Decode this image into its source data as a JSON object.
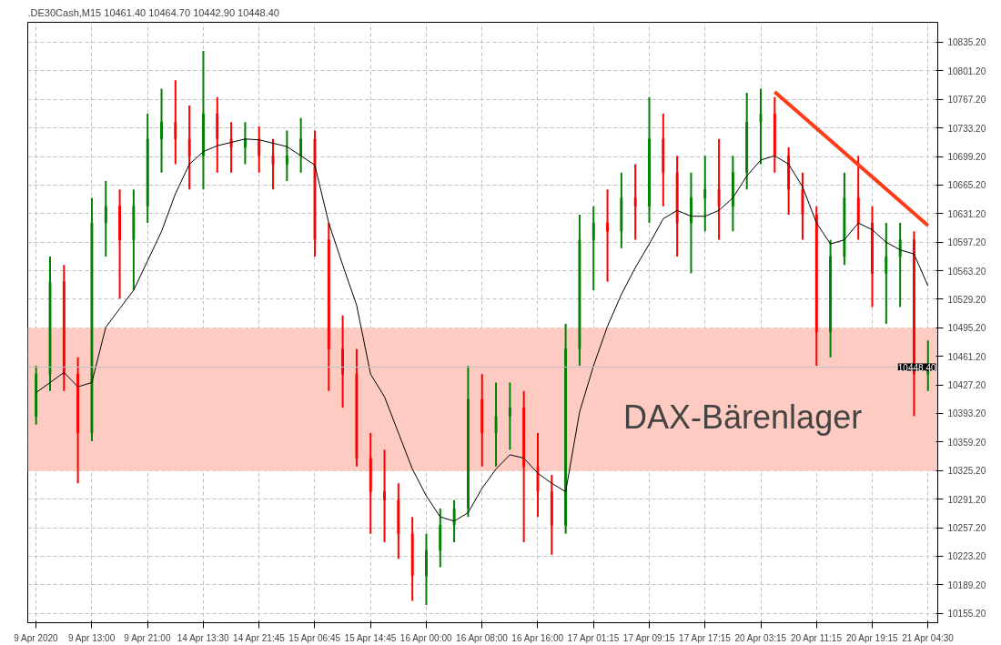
{
  "chart_data": {
    "type": "candlestick",
    "title": ".DE30Cash,M15  10461.40 10464.70 10442.90 10448.40",
    "categories": [
      "9 Apr 2020",
      null,
      null,
      null,
      "9 Apr 13:00",
      null,
      null,
      null,
      "9 Apr 21:00",
      null,
      null,
      null,
      "14 Apr 13:30",
      null,
      null,
      null,
      "14 Apr 21:45",
      null,
      null,
      null,
      "15 Apr 06:45",
      null,
      null,
      null,
      "15 Apr 14:45",
      null,
      null,
      null,
      "16 Apr 00:00",
      null,
      null,
      null,
      "16 Apr 08:00",
      null,
      null,
      null,
      "16 Apr 16:00",
      null,
      null,
      null,
      "17 Apr 01:15",
      null,
      null,
      null,
      "17 Apr 09:15",
      null,
      null,
      null,
      "17 Apr 17:15",
      null,
      null,
      null,
      "20 Apr 03:15",
      null,
      null,
      null,
      "20 Apr 11:15",
      null,
      null,
      null,
      "20 Apr 19:15",
      null,
      null,
      null,
      "21 Apr 04:30"
    ],
    "ohlc": [
      [
        10390,
        10450,
        10380,
        10440
      ],
      [
        10440,
        10580,
        10420,
        10550
      ],
      [
        10550,
        10570,
        10420,
        10440
      ],
      [
        10440,
        10460,
        10310,
        10370
      ],
      [
        10370,
        10650,
        10360,
        10620
      ],
      [
        10620,
        10670,
        10580,
        10640
      ],
      [
        10640,
        10660,
        10530,
        10600
      ],
      [
        10600,
        10660,
        10540,
        10640
      ],
      [
        10640,
        10750,
        10620,
        10720
      ],
      [
        10720,
        10780,
        10680,
        10740
      ],
      [
        10740,
        10790,
        10690,
        10720
      ],
      [
        10720,
        10760,
        10660,
        10700
      ],
      [
        10700,
        10825,
        10660,
        10750
      ],
      [
        10750,
        10770,
        10680,
        10720
      ],
      [
        10720,
        10740,
        10680,
        10710
      ],
      [
        10710,
        10740,
        10690,
        10720
      ],
      [
        10720,
        10735,
        10680,
        10700
      ],
      [
        10700,
        10720,
        10660,
        10690
      ],
      [
        10690,
        10730,
        10670,
        10700
      ],
      [
        10700,
        10745,
        10680,
        10720
      ],
      [
        10720,
        10730,
        10580,
        10600
      ],
      [
        10600,
        10620,
        10420,
        10470
      ],
      [
        10470,
        10510,
        10400,
        10440
      ],
      [
        10440,
        10470,
        10330,
        10340
      ],
      [
        10340,
        10370,
        10250,
        10300
      ],
      [
        10300,
        10350,
        10240,
        10290
      ],
      [
        10290,
        10310,
        10220,
        10250
      ],
      [
        10250,
        10270,
        10170,
        10200
      ],
      [
        10200,
        10250,
        10165,
        10230
      ],
      [
        10230,
        10280,
        10210,
        10260
      ],
      [
        10260,
        10290,
        10240,
        10280
      ],
      [
        10280,
        10450,
        10270,
        10410
      ],
      [
        10410,
        10440,
        10330,
        10370
      ],
      [
        10370,
        10430,
        10330,
        10390
      ],
      [
        10390,
        10430,
        10350,
        10400
      ],
      [
        10400,
        10420,
        10240,
        10330
      ],
      [
        10330,
        10370,
        10270,
        10300
      ],
      [
        10300,
        10320,
        10225,
        10260
      ],
      [
        10260,
        10500,
        10250,
        10470
      ],
      [
        10470,
        10630,
        10450,
        10600
      ],
      [
        10600,
        10640,
        10540,
        10620
      ],
      [
        10620,
        10660,
        10550,
        10610
      ],
      [
        10610,
        10680,
        10590,
        10650
      ],
      [
        10650,
        10690,
        10600,
        10640
      ],
      [
        10640,
        10770,
        10620,
        10720
      ],
      [
        10720,
        10750,
        10640,
        10680
      ],
      [
        10680,
        10700,
        10580,
        10620
      ],
      [
        10620,
        10680,
        10560,
        10650
      ],
      [
        10650,
        10700,
        10610,
        10660
      ],
      [
        10660,
        10720,
        10600,
        10640
      ],
      [
        10640,
        10700,
        10610,
        10680
      ],
      [
        10680,
        10775,
        10660,
        10740
      ],
      [
        10740,
        10780,
        10690,
        10750
      ],
      [
        10750,
        10770,
        10680,
        10700
      ],
      [
        10700,
        10710,
        10630,
        10660
      ],
      [
        10660,
        10680,
        10600,
        10630
      ],
      [
        10630,
        10640,
        10450,
        10490
      ],
      [
        10490,
        10600,
        10460,
        10580
      ],
      [
        10580,
        10680,
        10570,
        10650
      ],
      [
        10650,
        10700,
        10600,
        10620
      ],
      [
        10620,
        10640,
        10520,
        10560
      ],
      [
        10560,
        10620,
        10500,
        10580
      ],
      [
        10580,
        10620,
        10520,
        10600
      ],
      [
        10600,
        10610,
        10390,
        10440
      ],
      [
        10440,
        10480,
        10420,
        10448.4
      ]
    ],
    "colors": [
      "#008000",
      "#008000",
      "#ff0000",
      "#ff0000",
      "#008000",
      "#008000",
      "#ff0000",
      "#008000",
      "#008000",
      "#008000",
      "#ff0000",
      "#ff0000",
      "#008000",
      "#ff0000",
      "#ff0000",
      "#008000",
      "#ff0000",
      "#ff0000",
      "#008000",
      "#008000",
      "#ff0000",
      "#ff0000",
      "#ff0000",
      "#ff0000",
      "#ff0000",
      "#ff0000",
      "#ff0000",
      "#ff0000",
      "#008000",
      "#008000",
      "#008000",
      "#008000",
      "#ff0000",
      "#008000",
      "#008000",
      "#ff0000",
      "#ff0000",
      "#ff0000",
      "#008000",
      "#008000",
      "#008000",
      "#ff0000",
      "#008000",
      "#ff0000",
      "#008000",
      "#ff0000",
      "#ff0000",
      "#008000",
      "#008000",
      "#ff0000",
      "#008000",
      "#008000",
      "#008000",
      "#ff0000",
      "#ff0000",
      "#ff0000",
      "#ff0000",
      "#008000",
      "#008000",
      "#ff0000",
      "#ff0000",
      "#008000",
      "#008000",
      "#ff0000",
      "#008000"
    ],
    "ylim": [
      10144,
      10859
    ],
    "yticks": [
      {
        "value": 10155.2,
        "label": "10155.20"
      },
      {
        "value": 10189.2,
        "label": "10189.20"
      },
      {
        "value": 10223.2,
        "label": "10223.20"
      },
      {
        "value": 10257.2,
        "label": "10257.20"
      },
      {
        "value": 10291.2,
        "label": "10291.20"
      },
      {
        "value": 10325.2,
        "label": "10325.20"
      },
      {
        "value": 10359.2,
        "label": "10359.20"
      },
      {
        "value": 10393.2,
        "label": "10393.20"
      },
      {
        "value": 10427.2,
        "label": "10427.20"
      },
      {
        "value": 10461.2,
        "label": "10461.20"
      },
      {
        "value": 10495.2,
        "label": "10495.20"
      },
      {
        "value": 10529.2,
        "label": "10529.20"
      },
      {
        "value": 10563.2,
        "label": "10563.20"
      },
      {
        "value": 10597.2,
        "label": "10597.20"
      },
      {
        "value": 10631.2,
        "label": "10631.20"
      },
      {
        "value": 10665.2,
        "label": "10665.20"
      },
      {
        "value": 10699.2,
        "label": "10699.20"
      },
      {
        "value": 10733.2,
        "label": "10733.20"
      },
      {
        "value": 10767.2,
        "label": "10767.20"
      },
      {
        "value": 10801.2,
        "label": "10801.20"
      },
      {
        "value": 10835.2,
        "label": "10835.20"
      }
    ],
    "grid": true,
    "bands": [
      {
        "axis": "y",
        "from": 10325,
        "to": 10495,
        "label": "DAX-Bärenlager",
        "color": "#fdcbc2"
      }
    ],
    "ref_lines": [
      {
        "axis": "y",
        "value": 10448.4,
        "label": "10448.40",
        "color": "#c0c0c0"
      }
    ],
    "series": [
      {
        "type": "line",
        "color": "#000000",
        "values": [
          10418,
          10430,
          10442,
          10425,
          10430,
          10496,
          10518,
          10540,
          10575,
          10610,
          10655,
          10690,
          10705,
          10712,
          10716,
          10720,
          10719,
          10715,
          10711,
          10700,
          10689,
          10620,
          10570,
          10522,
          10440,
          10413,
          10370,
          10327,
          10295,
          10270,
          10265,
          10275,
          10304,
          10327,
          10344,
          10340,
          10322,
          10310,
          10300,
          10395,
          10450,
          10497,
          10535,
          10567,
          10595,
          10625,
          10635,
          10628,
          10628,
          10635,
          10650,
          10676,
          10695,
          10700,
          10690,
          10663,
          10620,
          10595,
          10600,
          10620,
          10612,
          10597,
          10588,
          10583,
          10545
        ]
      },
      {
        "type": "line",
        "color": "#ff3b1a",
        "values": [
          null,
          null,
          null,
          null,
          null,
          null,
          null,
          null,
          null,
          null,
          null,
          null,
          null,
          null,
          null,
          null,
          null,
          null,
          null,
          null,
          null,
          null,
          null,
          null,
          null,
          null,
          null,
          null,
          null,
          null,
          null,
          null,
          null,
          null,
          null,
          null,
          null,
          null,
          null,
          null,
          null,
          null,
          null,
          null,
          null,
          null,
          null,
          null,
          null,
          null,
          null,
          null,
          null,
          10776,
          null,
          null,
          null,
          null,
          null,
          null,
          null,
          null,
          null,
          null,
          10617
        ]
      }
    ]
  }
}
